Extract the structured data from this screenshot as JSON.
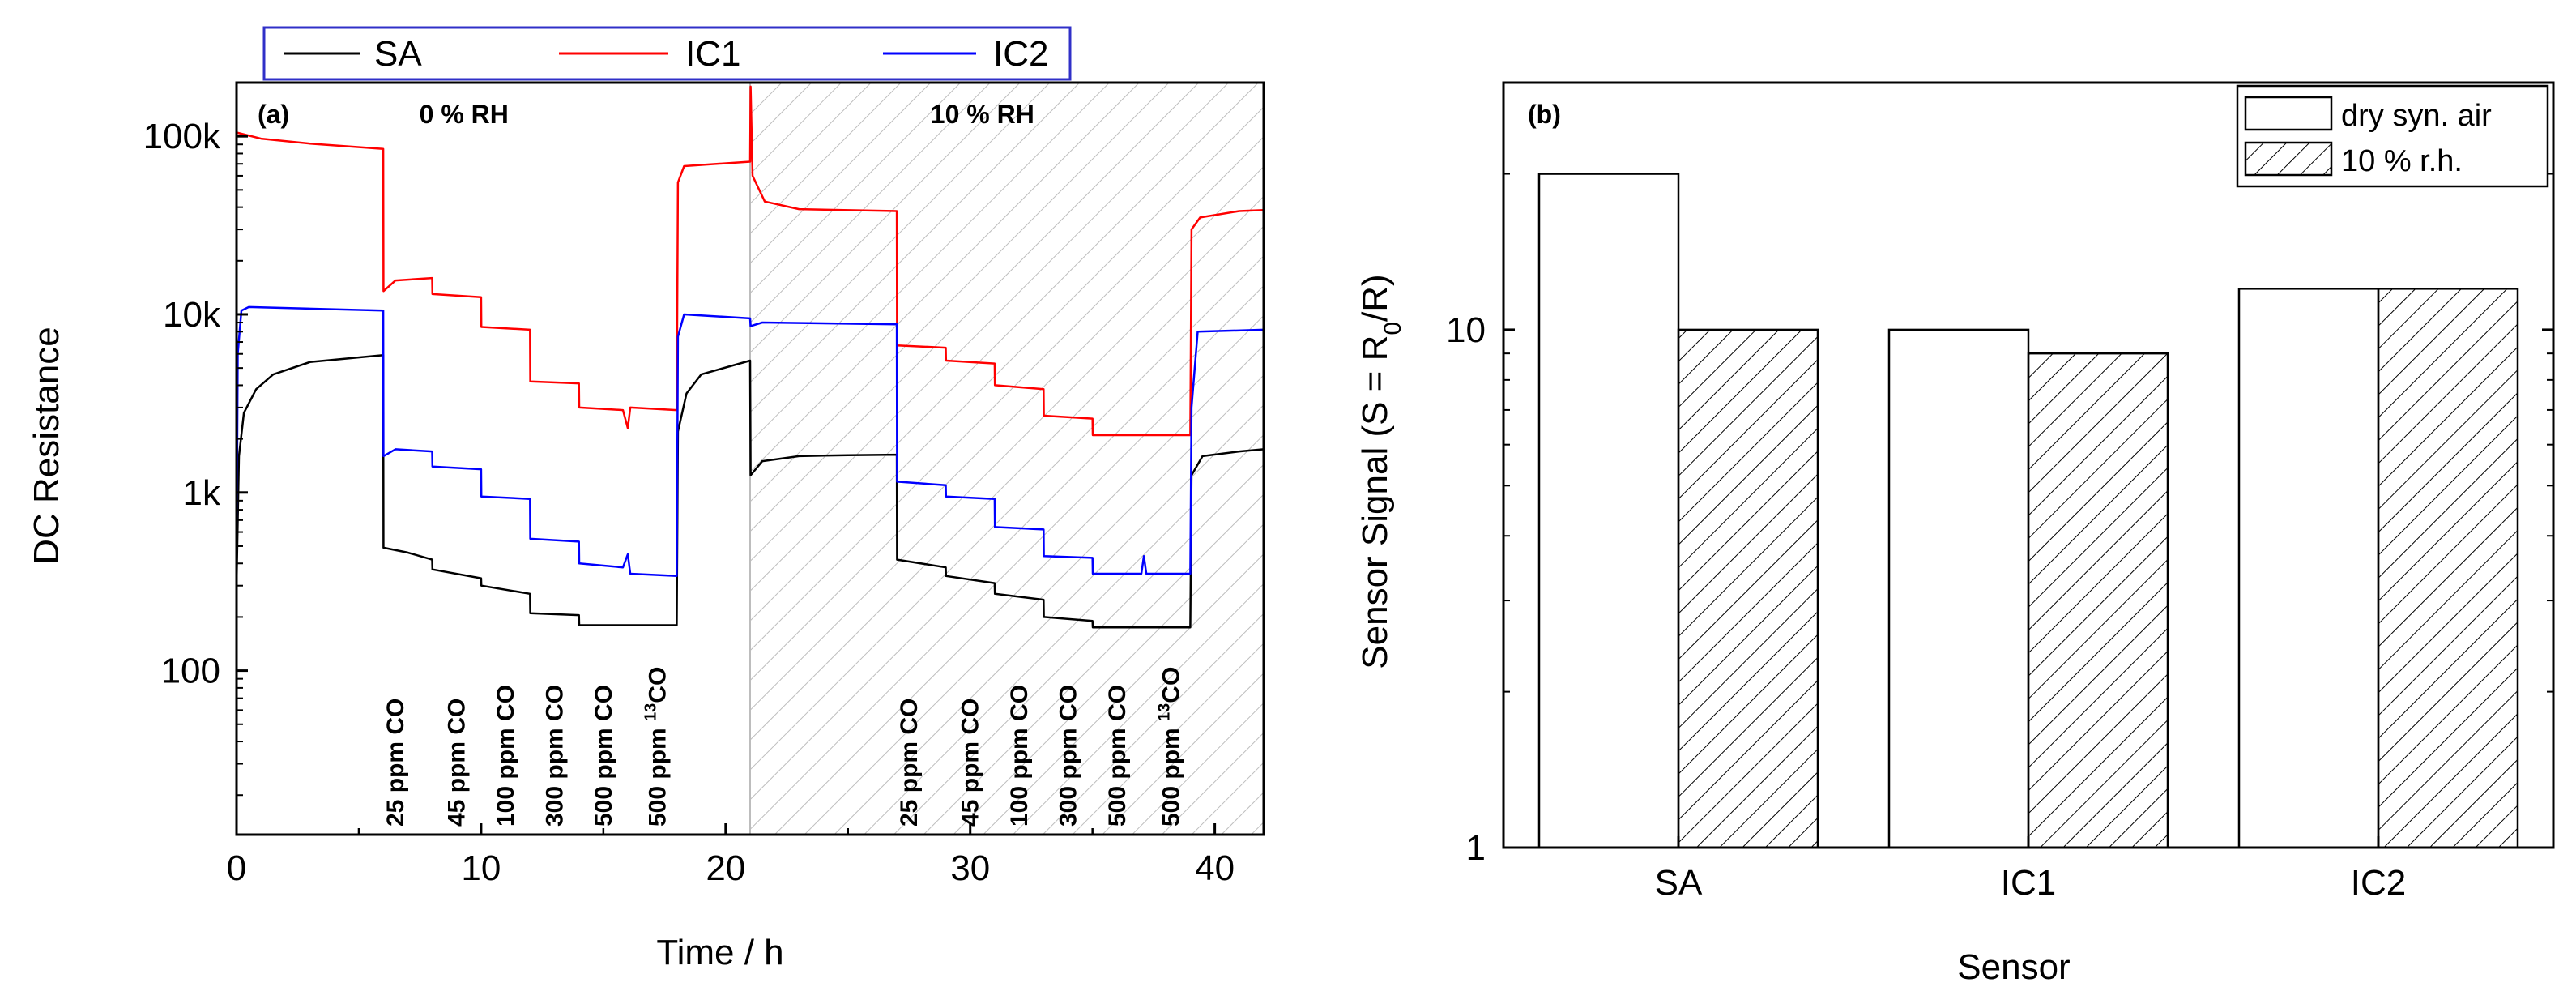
{
  "chart_data": [
    {
      "id": "a",
      "type": "line",
      "panel_label": "(a)",
      "xlabel": "Time / h",
      "ylabel": "DC Resistance",
      "xscale": "linear",
      "yscale": "log",
      "xlim": [
        0,
        42
      ],
      "ylim": [
        12,
        200000
      ],
      "xticks": [
        0,
        10,
        20,
        30,
        40
      ],
      "xtick_labels": [
        "0",
        "10",
        "20",
        "30",
        "40"
      ],
      "yticks": [
        100,
        1000,
        10000,
        100000
      ],
      "ytick_labels": [
        "100",
        "1k",
        "10k",
        "100k"
      ],
      "regions": [
        {
          "label": "0 % RH",
          "x_range": [
            0,
            21
          ],
          "hatched": false
        },
        {
          "label": "10 % RH",
          "x_range": [
            21,
            42
          ],
          "hatched": true
        }
      ],
      "legend": {
        "position": "top",
        "entries": [
          "SA",
          "IC1",
          "IC2"
        ]
      },
      "annotations": [
        {
          "text": "25 ppm CO",
          "x": 6.5
        },
        {
          "text": "45 ppm CO",
          "x": 9.0
        },
        {
          "text": "100 ppm CO",
          "x": 11.0
        },
        {
          "text": "300 ppm CO",
          "x": 13.0
        },
        {
          "text": "500 ppm CO",
          "x": 15.0
        },
        {
          "text": "500 ppm ",
          "sup": "13",
          "tail": "CO",
          "x": 17.2
        },
        {
          "text": "25 ppm CO",
          "x": 27.5
        },
        {
          "text": "45 ppm CO",
          "x": 30.0
        },
        {
          "text": "100 ppm CO",
          "x": 32.0
        },
        {
          "text": "300 ppm CO",
          "x": 34.0
        },
        {
          "text": "500 ppm CO",
          "x": 36.0
        },
        {
          "text": "500 ppm ",
          "sup": "13",
          "tail": "CO",
          "x": 38.2
        }
      ],
      "series": [
        {
          "name": "SA",
          "color": "#000000",
          "points": [
            [
              0,
              300
            ],
            [
              0.1,
              1600
            ],
            [
              0.3,
              2800
            ],
            [
              0.8,
              3800
            ],
            [
              1.5,
              4600
            ],
            [
              3,
              5400
            ],
            [
              6,
              5900
            ],
            [
              6.01,
              490
            ],
            [
              7,
              460
            ],
            [
              8,
              420
            ],
            [
              8.01,
              370
            ],
            [
              10,
              330
            ],
            [
              10.01,
              300
            ],
            [
              12,
              270
            ],
            [
              12.01,
              210
            ],
            [
              14,
              205
            ],
            [
              14.01,
              180
            ],
            [
              18,
              180
            ],
            [
              18.05,
              2200
            ],
            [
              18.4,
              3600
            ],
            [
              19,
              4600
            ],
            [
              21,
              5500
            ],
            [
              21.02,
              1250
            ],
            [
              21.5,
              1500
            ],
            [
              23,
              1600
            ],
            [
              25,
              1620
            ],
            [
              27,
              1630
            ],
            [
              27.01,
              420
            ],
            [
              29,
              380
            ],
            [
              29.01,
              340
            ],
            [
              31,
              310
            ],
            [
              31.01,
              270
            ],
            [
              33,
              250
            ],
            [
              33.01,
              200
            ],
            [
              35,
              190
            ],
            [
              35.01,
              175
            ],
            [
              39,
              175
            ],
            [
              39.05,
              1250
            ],
            [
              39.5,
              1600
            ],
            [
              41,
              1700
            ],
            [
              42,
              1750
            ]
          ]
        },
        {
          "name": "IC1",
          "color": "#ff0000",
          "points": [
            [
              0,
              105000
            ],
            [
              1,
              97000
            ],
            [
              3,
              91000
            ],
            [
              6,
              85000
            ],
            [
              6.01,
              13500
            ],
            [
              6.5,
              15500
            ],
            [
              8,
              16000
            ],
            [
              8.01,
              13000
            ],
            [
              10,
              12500
            ],
            [
              10.01,
              8500
            ],
            [
              12,
              8200
            ],
            [
              12.01,
              4200
            ],
            [
              14,
              4100
            ],
            [
              14.01,
              3000
            ],
            [
              15.8,
              2900
            ],
            [
              16,
              2300
            ],
            [
              16.1,
              3000
            ],
            [
              18,
              2900
            ],
            [
              18.05,
              55000
            ],
            [
              18.3,
              68000
            ],
            [
              21,
              72000
            ],
            [
              21.02,
              190000
            ],
            [
              21.1,
              60000
            ],
            [
              21.6,
              43000
            ],
            [
              23,
              39000
            ],
            [
              27,
              38000
            ],
            [
              27.01,
              6700
            ],
            [
              29,
              6500
            ],
            [
              29.01,
              5500
            ],
            [
              31,
              5300
            ],
            [
              31.01,
              4000
            ],
            [
              33,
              3800
            ],
            [
              33.01,
              2700
            ],
            [
              35,
              2600
            ],
            [
              35.01,
              2100
            ],
            [
              39,
              2100
            ],
            [
              39.05,
              30000
            ],
            [
              39.4,
              35000
            ],
            [
              41,
              38000
            ],
            [
              42,
              38500
            ]
          ]
        },
        {
          "name": "IC2",
          "color": "#0000ff",
          "points": [
            [
              0,
              400
            ],
            [
              0.05,
              6000
            ],
            [
              0.2,
              10500
            ],
            [
              0.5,
              11000
            ],
            [
              6,
              10500
            ],
            [
              6.01,
              1600
            ],
            [
              6.5,
              1750
            ],
            [
              8,
              1700
            ],
            [
              8.01,
              1400
            ],
            [
              10,
              1350
            ],
            [
              10.01,
              950
            ],
            [
              12,
              920
            ],
            [
              12.01,
              550
            ],
            [
              14,
              530
            ],
            [
              14.01,
              400
            ],
            [
              15.8,
              380
            ],
            [
              16,
              450
            ],
            [
              16.1,
              350
            ],
            [
              18,
              340
            ],
            [
              18.05,
              7500
            ],
            [
              18.3,
              10000
            ],
            [
              21,
              9500
            ],
            [
              21.02,
              8600
            ],
            [
              21.5,
              9000
            ],
            [
              27,
              8800
            ],
            [
              27.01,
              1150
            ],
            [
              29,
              1100
            ],
            [
              29.01,
              950
            ],
            [
              31,
              920
            ],
            [
              31.01,
              640
            ],
            [
              33,
              620
            ],
            [
              33.01,
              440
            ],
            [
              35,
              430
            ],
            [
              35.01,
              350
            ],
            [
              37,
              350
            ],
            [
              37.1,
              440
            ],
            [
              37.2,
              350
            ],
            [
              39,
              350
            ],
            [
              39.05,
              3000
            ],
            [
              39.3,
              8000
            ],
            [
              42,
              8200
            ]
          ]
        }
      ]
    },
    {
      "id": "b",
      "type": "bar",
      "panel_label": "(b)",
      "xlabel": "Sensor",
      "ylabel_main": "Sensor Signal (S = R",
      "ylabel_sub": "0",
      "ylabel_tail": "/R)",
      "yscale": "log",
      "ylim": [
        1,
        30
      ],
      "yticks": [
        1,
        10
      ],
      "ytick_labels": [
        "1",
        "10"
      ],
      "categories": [
        "SA",
        "IC1",
        "IC2"
      ],
      "legend": {
        "position": "top-right"
      },
      "series": [
        {
          "name": "dry syn. air",
          "hatched": false,
          "values": [
            20,
            10,
            12
          ]
        },
        {
          "name": "10 % r.h.",
          "hatched": true,
          "values": [
            10,
            9,
            12
          ]
        }
      ]
    }
  ]
}
